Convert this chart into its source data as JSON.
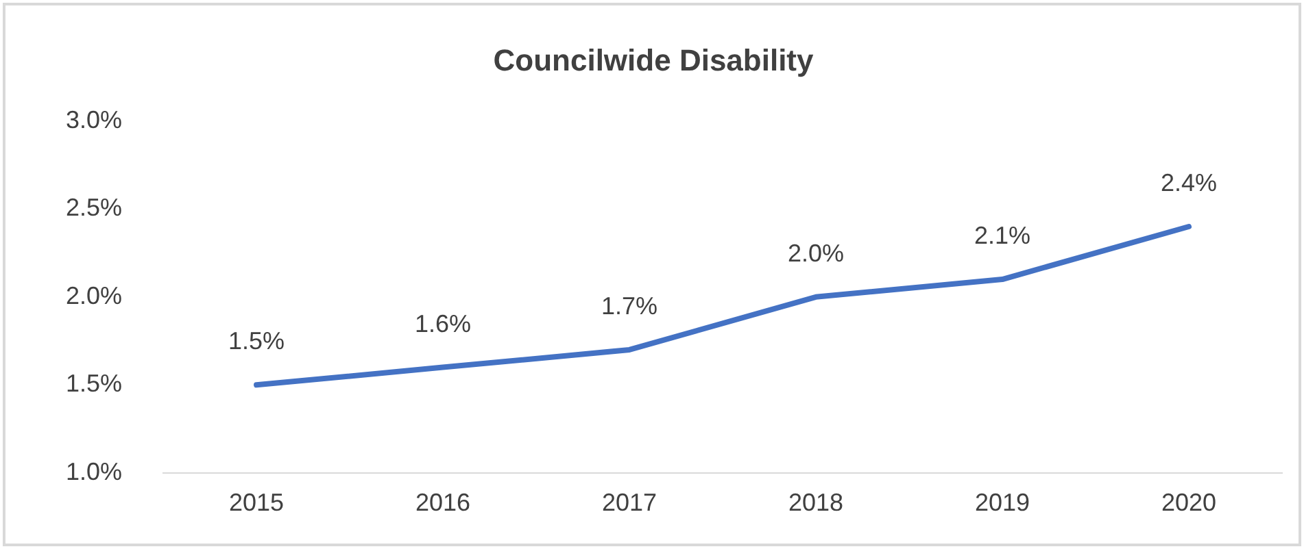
{
  "chart_data": {
    "type": "line",
    "title": "Councilwide Disability",
    "categories": [
      "2015",
      "2016",
      "2017",
      "2018",
      "2019",
      "2020"
    ],
    "series": [
      {
        "color": "#4472c4",
        "values": [
          1.5,
          1.6,
          1.7,
          2.0,
          2.1,
          2.4
        ],
        "value_labels": [
          "1.5%",
          "1.6%",
          "1.7%",
          "2.0%",
          "2.1%",
          "2.4%"
        ]
      }
    ],
    "ylim": [
      1.0,
      3.0
    ],
    "yticks": [
      {
        "value": 1.0,
        "label": "1.0%"
      },
      {
        "value": 1.5,
        "label": "1.5%"
      },
      {
        "value": 2.0,
        "label": "2.0%"
      },
      {
        "value": 2.5,
        "label": "2.5%"
      },
      {
        "value": 3.0,
        "label": "3.0%"
      }
    ],
    "grid": false,
    "legend": false,
    "marker": "none",
    "line_style": "solid"
  }
}
